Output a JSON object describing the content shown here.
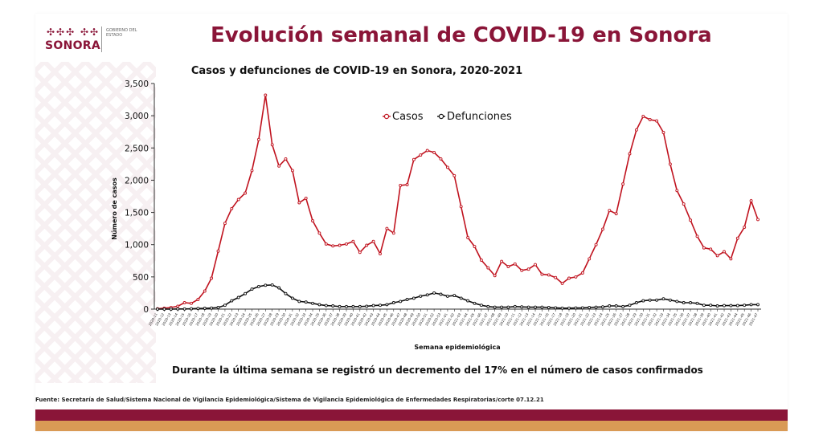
{
  "header": {
    "logo_text": "SONORA",
    "logo_glyphs": "✣✣✣ ✣✣",
    "gov_text": "GOBIERNO DEL ESTADO",
    "main_title": "Evolución semanal de COVID-19 en Sonora"
  },
  "colors": {
    "accent": "#8a1538",
    "casos": "#c0131f",
    "defunciones": "#111111",
    "band_orange": "#d99a55"
  },
  "note": "Durante la última semana se registró un decremento del 17% en el número de casos confirmados",
  "footnote": "Fuente: Secretaría de Salud/Sistema Nacional de Vigilancia Epidemiológica/Sistema de Vigilancia Epidemiológica de Enfermedades Respiratorias/corte 07.12.21",
  "chart_data": {
    "type": "line",
    "title": "Casos y defunciones de COVID-19 en Sonora, 2020-2021",
    "xlabel": "Semana epidemiológica",
    "ylabel": "Número de casos",
    "ylim": [
      0,
      3500
    ],
    "yticks": [
      "0",
      "500",
      "1,000",
      "1,500",
      "2,000",
      "2,500",
      "3,000",
      "3,500"
    ],
    "legend": "top-center",
    "x": [
      "2020-11",
      "2020-12",
      "2020-13",
      "2020-14",
      "2020-15",
      "2020-16",
      "2020-17",
      "2020-18",
      "2020-19",
      "2020-20",
      "2020-21",
      "2020-22",
      "2020-23",
      "2020-24",
      "2020-25",
      "2020-26",
      "2020-27",
      "2020-28",
      "2020-29",
      "2020-30",
      "2020-31",
      "2020-32",
      "2020-33",
      "2020-34",
      "2020-35",
      "2020-36",
      "2020-37",
      "2020-38",
      "2020-39",
      "2020-40",
      "2020-41",
      "2020-42",
      "2020-43",
      "2020-44",
      "2020-45",
      "2020-46",
      "2020-47",
      "2020-48",
      "2020-49",
      "2020-50",
      "2020-51",
      "2020-52",
      "2020-53",
      "2021-01",
      "2021-02",
      "2021-03",
      "2021-04",
      "2021-05",
      "2021-06",
      "2021-07",
      "2021-08",
      "2021-09",
      "2021-10",
      "2021-11",
      "2021-12",
      "2021-13",
      "2021-14",
      "2021-15",
      "2021-16",
      "2021-17",
      "2021-18",
      "2021-19",
      "2021-20",
      "2021-21",
      "2021-22",
      "2021-23",
      "2021-24",
      "2021-25",
      "2021-26",
      "2021-27",
      "2021-28",
      "2021-29",
      "2021-30",
      "2021-31",
      "2021-32",
      "2021-33",
      "2021-34",
      "2021-35",
      "2021-36",
      "2021-37",
      "2021-38",
      "2021-39",
      "2021-40",
      "2021-41",
      "2021-42",
      "2021-43",
      "2021-44",
      "2021-45",
      "2021-46",
      "2021-47"
    ],
    "series": [
      {
        "name": "Casos",
        "values": [
          5,
          15,
          25,
          45,
          100,
          90,
          150,
          280,
          480,
          900,
          1330,
          1560,
          1700,
          1800,
          2150,
          2630,
          3320,
          2550,
          2220,
          2330,
          2150,
          1650,
          1720,
          1370,
          1180,
          1010,
          980,
          990,
          1010,
          1050,
          880,
          990,
          1050,
          860,
          1250,
          1180,
          1920,
          1930,
          2320,
          2390,
          2460,
          2430,
          2330,
          2200,
          2070,
          1590,
          1110,
          970,
          760,
          640,
          520,
          740,
          660,
          700,
          600,
          620,
          690,
          540,
          530,
          490,
          400,
          480,
          500,
          560,
          780,
          1000,
          1240,
          1530,
          1480,
          1940,
          2410,
          2780,
          2990,
          2940,
          2920,
          2740,
          2250,
          1840,
          1630,
          1380,
          1130,
          950,
          930,
          830,
          890,
          780,
          1100,
          1270,
          1680,
          1390
        ]
      },
      {
        "name": "Defunciones",
        "values": [
          0,
          0,
          0,
          2,
          3,
          5,
          10,
          12,
          16,
          25,
          60,
          130,
          180,
          240,
          310,
          350,
          370,
          375,
          330,
          240,
          170,
          120,
          110,
          90,
          70,
          55,
          50,
          40,
          40,
          40,
          40,
          45,
          55,
          60,
          70,
          100,
          120,
          150,
          170,
          200,
          220,
          250,
          230,
          200,
          210,
          170,
          130,
          90,
          60,
          40,
          30,
          30,
          30,
          40,
          35,
          30,
          30,
          30,
          25,
          20,
          15,
          15,
          18,
          20,
          25,
          30,
          35,
          50,
          50,
          40,
          60,
          100,
          130,
          140,
          140,
          160,
          140,
          120,
          100,
          100,
          90,
          60,
          60,
          50,
          55,
          55,
          55,
          60,
          70,
          70
        ]
      }
    ]
  }
}
